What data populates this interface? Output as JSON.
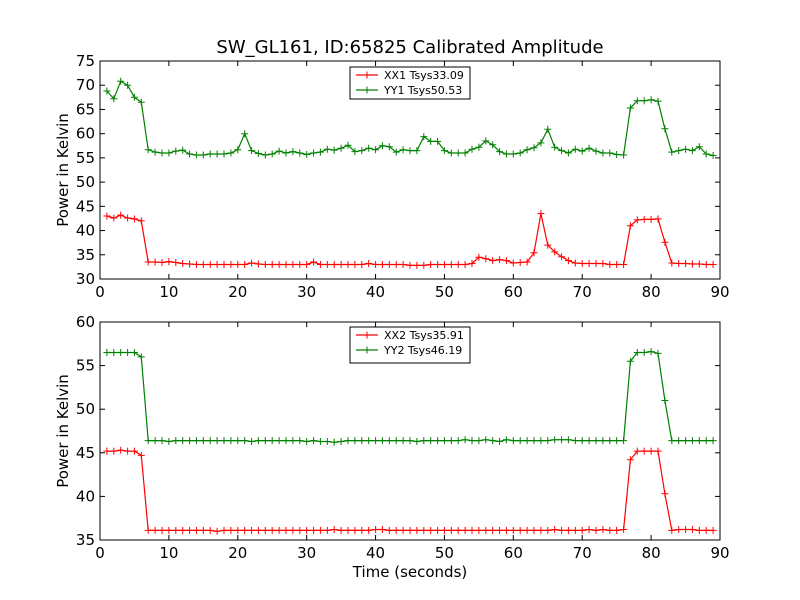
{
  "title": "SW_GL161, ID:65825 Calibrated Amplitude",
  "colors": {
    "xx": "#ff0000",
    "yy": "#008000"
  },
  "chart_data": [
    {
      "type": "line",
      "xlabel": "",
      "ylabel": "Power in Kelvin",
      "xlim": [
        0,
        90
      ],
      "ylim": [
        30,
        75
      ],
      "xticks": [
        0,
        10,
        20,
        30,
        40,
        50,
        60,
        70,
        80,
        90
      ],
      "yticks": [
        30,
        35,
        40,
        45,
        50,
        55,
        60,
        65,
        70,
        75
      ],
      "grid": false,
      "legend_position": "top-center",
      "x": [
        1,
        2,
        3,
        4,
        5,
        6,
        7,
        8,
        9,
        10,
        11,
        12,
        13,
        14,
        15,
        16,
        17,
        18,
        19,
        20,
        21,
        22,
        23,
        24,
        25,
        26,
        27,
        28,
        29,
        30,
        31,
        32,
        33,
        34,
        35,
        36,
        37,
        38,
        39,
        40,
        41,
        42,
        43,
        44,
        45,
        46,
        47,
        48,
        49,
        50,
        51,
        52,
        53,
        54,
        55,
        56,
        57,
        58,
        59,
        60,
        61,
        62,
        63,
        64,
        65,
        66,
        67,
        68,
        69,
        70,
        71,
        72,
        73,
        74,
        75,
        76,
        77,
        78,
        79,
        80,
        81,
        82,
        83,
        84,
        85,
        86,
        87,
        88,
        89
      ],
      "series": [
        {
          "name": "XX1 Tsys33.09",
          "color": "#ff0000",
          "values": [
            43.0,
            42.6,
            43.2,
            42.6,
            42.4,
            42.0,
            33.5,
            33.5,
            33.4,
            33.6,
            33.4,
            33.2,
            33.1,
            33.0,
            33.0,
            33.0,
            33.0,
            33.0,
            33.0,
            33.0,
            33.0,
            33.3,
            33.1,
            33.0,
            33.0,
            33.0,
            33.0,
            33.0,
            33.0,
            33.0,
            33.5,
            33.0,
            33.0,
            33.0,
            33.0,
            33.0,
            33.0,
            33.0,
            33.2,
            33.0,
            33.0,
            33.0,
            33.0,
            33.0,
            32.8,
            32.8,
            32.8,
            33.0,
            33.0,
            33.0,
            33.0,
            33.0,
            33.0,
            33.2,
            34.5,
            34.2,
            33.8,
            34.0,
            33.8,
            33.3,
            33.4,
            33.5,
            35.4,
            43.5,
            37.0,
            35.6,
            34.6,
            33.8,
            33.3,
            33.2,
            33.2,
            33.2,
            33.2,
            33.0,
            33.0,
            33.0,
            41.0,
            42.2,
            42.3,
            42.3,
            42.4,
            37.6,
            33.3,
            33.2,
            33.2,
            33.1,
            33.1,
            33.0,
            33.0
          ]
        },
        {
          "name": "YY1 Tsys50.53",
          "color": "#008000",
          "values": [
            68.8,
            67.2,
            70.8,
            70.0,
            67.5,
            66.5,
            56.7,
            56.2,
            56.0,
            56.0,
            56.4,
            56.6,
            55.8,
            55.6,
            55.6,
            55.8,
            55.8,
            55.8,
            56.0,
            56.7,
            60.0,
            56.5,
            55.9,
            55.6,
            55.8,
            56.4,
            56.0,
            56.3,
            56.0,
            55.7,
            56.0,
            56.2,
            56.8,
            56.6,
            57.0,
            57.6,
            56.3,
            56.5,
            57.0,
            56.7,
            57.5,
            57.3,
            56.2,
            56.7,
            56.5,
            56.5,
            59.4,
            58.4,
            58.4,
            56.5,
            56.0,
            56.0,
            56.0,
            56.8,
            57.2,
            58.5,
            57.7,
            56.3,
            55.8,
            55.8,
            56.0,
            56.7,
            57.1,
            58.1,
            60.9,
            57.2,
            56.5,
            56.0,
            56.8,
            56.4,
            57.0,
            56.4,
            56.0,
            56.0,
            55.7,
            55.6,
            65.3,
            66.8,
            66.8,
            67.0,
            66.7,
            61.0,
            56.2,
            56.5,
            56.8,
            56.5,
            57.3,
            55.8,
            55.5
          ]
        }
      ]
    },
    {
      "type": "line",
      "xlabel": "Time (seconds)",
      "ylabel": "Power in Kelvin",
      "xlim": [
        0,
        90
      ],
      "ylim": [
        35,
        60
      ],
      "xticks": [
        0,
        10,
        20,
        30,
        40,
        50,
        60,
        70,
        80,
        90
      ],
      "yticks": [
        35,
        40,
        45,
        50,
        55,
        60
      ],
      "grid": false,
      "legend_position": "top-center",
      "x": [
        1,
        2,
        3,
        4,
        5,
        6,
        7,
        8,
        9,
        10,
        11,
        12,
        13,
        14,
        15,
        16,
        17,
        18,
        19,
        20,
        21,
        22,
        23,
        24,
        25,
        26,
        27,
        28,
        29,
        30,
        31,
        32,
        33,
        34,
        35,
        36,
        37,
        38,
        39,
        40,
        41,
        42,
        43,
        44,
        45,
        46,
        47,
        48,
        49,
        50,
        51,
        52,
        53,
        54,
        55,
        56,
        57,
        58,
        59,
        60,
        61,
        62,
        63,
        64,
        65,
        66,
        67,
        68,
        69,
        70,
        71,
        72,
        73,
        74,
        75,
        76,
        77,
        78,
        79,
        80,
        81,
        82,
        83,
        84,
        85,
        86,
        87,
        88,
        89
      ],
      "series": [
        {
          "name": "XX2 Tsys35.91",
          "color": "#ff0000",
          "values": [
            45.2,
            45.2,
            45.3,
            45.2,
            45.2,
            44.7,
            36.1,
            36.1,
            36.1,
            36.1,
            36.1,
            36.1,
            36.1,
            36.1,
            36.1,
            36.1,
            36.0,
            36.1,
            36.1,
            36.1,
            36.1,
            36.1,
            36.1,
            36.1,
            36.1,
            36.1,
            36.1,
            36.1,
            36.1,
            36.1,
            36.1,
            36.1,
            36.1,
            36.2,
            36.1,
            36.1,
            36.1,
            36.1,
            36.1,
            36.2,
            36.2,
            36.1,
            36.1,
            36.1,
            36.1,
            36.1,
            36.1,
            36.1,
            36.1,
            36.1,
            36.1,
            36.1,
            36.1,
            36.1,
            36.1,
            36.1,
            36.1,
            36.1,
            36.1,
            36.1,
            36.1,
            36.1,
            36.1,
            36.1,
            36.1,
            36.2,
            36.1,
            36.1,
            36.1,
            36.1,
            36.2,
            36.1,
            36.2,
            36.1,
            36.1,
            36.2,
            44.2,
            45.2,
            45.2,
            45.2,
            45.2,
            40.3,
            36.1,
            36.2,
            36.2,
            36.2,
            36.1,
            36.1,
            36.1
          ]
        },
        {
          "name": "YY2 Tsys46.19",
          "color": "#008000",
          "values": [
            56.5,
            56.5,
            56.5,
            56.5,
            56.5,
            56.0,
            46.4,
            46.4,
            46.4,
            46.3,
            46.4,
            46.4,
            46.4,
            46.4,
            46.4,
            46.4,
            46.4,
            46.4,
            46.4,
            46.4,
            46.4,
            46.3,
            46.4,
            46.4,
            46.4,
            46.4,
            46.4,
            46.4,
            46.4,
            46.3,
            46.4,
            46.3,
            46.3,
            46.2,
            46.3,
            46.4,
            46.4,
            46.4,
            46.4,
            46.4,
            46.4,
            46.4,
            46.4,
            46.4,
            46.4,
            46.3,
            46.4,
            46.4,
            46.4,
            46.4,
            46.4,
            46.4,
            46.5,
            46.4,
            46.4,
            46.5,
            46.4,
            46.3,
            46.5,
            46.4,
            46.4,
            46.4,
            46.4,
            46.4,
            46.4,
            46.5,
            46.5,
            46.5,
            46.4,
            46.4,
            46.4,
            46.4,
            46.4,
            46.4,
            46.4,
            46.4,
            55.5,
            56.5,
            56.5,
            56.6,
            56.4,
            51.0,
            46.4,
            46.4,
            46.4,
            46.4,
            46.4,
            46.4,
            46.4
          ]
        }
      ]
    }
  ]
}
